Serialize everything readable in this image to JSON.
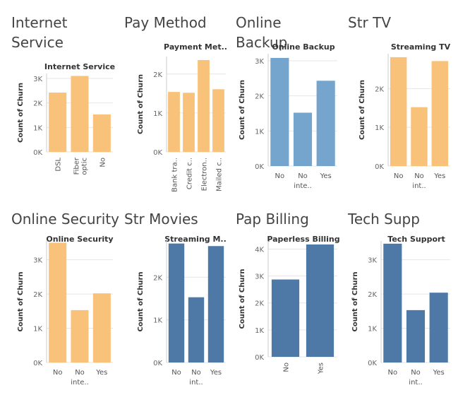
{
  "colors": {
    "orange": "#f8c27a",
    "blue_light": "#75a4cc",
    "blue_dark": "#4e79a7",
    "grid": "#e6e6e6",
    "axis": "#cccccc"
  },
  "chart_data": [
    {
      "panel": "Internet\nService",
      "type": "bar",
      "title": "Internet Service",
      "ylabel": "Count of Churn",
      "categories": [
        "DSL",
        "Fiber optic",
        "No"
      ],
      "tick_text": [
        [
          "DSL"
        ],
        [
          "Fiber",
          "optic"
        ],
        [
          "No"
        ]
      ],
      "values": [
        2420,
        3100,
        1530
      ],
      "ylim": [
        0,
        3200
      ],
      "yticks": [
        0,
        1000,
        2000,
        3000
      ],
      "ytick_labels": [
        "0K",
        "1K",
        "2K",
        "3K"
      ],
      "color": "orange",
      "xrotate": true
    },
    {
      "panel": "Pay Method",
      "type": "bar",
      "title": "Payment Met..",
      "ylabel": "Count of Churn",
      "categories": [
        "Bank tra..",
        "Credit c..",
        "Electron..",
        "Mailed c.."
      ],
      "tick_text": [
        [
          "Bank tra.."
        ],
        [
          "Credit c.."
        ],
        [
          "Electron.."
        ],
        [
          "Mailed c.."
        ]
      ],
      "values": [
        1540,
        1520,
        2360,
        1610
      ],
      "ylim": [
        0,
        2450
      ],
      "yticks": [
        0,
        1000,
        2000
      ],
      "ytick_labels": [
        "0K",
        "1K",
        "2K"
      ],
      "color": "orange",
      "xrotate": true
    },
    {
      "panel": "Online Backup",
      "type": "bar",
      "title": "Online Backup",
      "ylabel": "Count of Churn",
      "categories": [
        "No",
        "No inte..",
        "Yes"
      ],
      "tick_text": [
        [
          "No"
        ],
        [
          "No",
          "inte.."
        ],
        [
          "Yes"
        ]
      ],
      "values": [
        3080,
        1520,
        2430
      ],
      "ylim": [
        0,
        3200
      ],
      "yticks": [
        0,
        1000,
        2000,
        3000
      ],
      "ytick_labels": [
        "0K",
        "1K",
        "2K",
        "3K"
      ],
      "color": "blue_light",
      "xrotate": false
    },
    {
      "panel": "Str TV",
      "type": "bar",
      "title": "Streaming TV",
      "ylabel": "Count of Churn",
      "categories": [
        "No",
        "No int..",
        "Yes"
      ],
      "tick_text": [
        [
          "No"
        ],
        [
          "No",
          "int.."
        ],
        [
          "Yes"
        ]
      ],
      "values": [
        2810,
        1520,
        2710
      ],
      "ylim": [
        0,
        2900
      ],
      "yticks": [
        0,
        1000,
        2000
      ],
      "ytick_labels": [
        "0K",
        "1K",
        "2K"
      ],
      "color": "orange",
      "xrotate": false
    },
    {
      "panel": "Online Security",
      "type": "bar",
      "title": "Online Security",
      "ylabel": "Count of Churn",
      "categories": [
        "No",
        "No inte..",
        "Yes"
      ],
      "tick_text": [
        [
          "No"
        ],
        [
          "No",
          "inte.."
        ],
        [
          "Yes"
        ]
      ],
      "values": [
        3500,
        1530,
        2020
      ],
      "ylim": [
        0,
        3550
      ],
      "yticks": [
        0,
        1000,
        2000,
        3000
      ],
      "ytick_labels": [
        "0K",
        "1K",
        "2K",
        "3K"
      ],
      "color": "orange",
      "xrotate": false
    },
    {
      "panel": "Str Movies",
      "type": "bar",
      "title": "Streaming M..",
      "ylabel": "Count of Churn",
      "categories": [
        "No",
        "No int..",
        "Yes"
      ],
      "tick_text": [
        [
          "No"
        ],
        [
          "No",
          "int.."
        ],
        [
          "Yes"
        ]
      ],
      "values": [
        2790,
        1530,
        2730
      ],
      "ylim": [
        0,
        2850
      ],
      "yticks": [
        0,
        1000,
        2000
      ],
      "ytick_labels": [
        "0K",
        "1K",
        "2K"
      ],
      "color": "blue_dark",
      "xrotate": false
    },
    {
      "panel": "Pap Billing",
      "type": "bar",
      "title": "Paperless Billing",
      "ylabel": "Count of Churn",
      "categories": [
        "No",
        "Yes"
      ],
      "tick_text": [
        [
          "No"
        ],
        [
          "Yes"
        ]
      ],
      "values": [
        2870,
        4170
      ],
      "ylim": [
        0,
        4300
      ],
      "yticks": [
        0,
        1000,
        2000,
        3000,
        4000
      ],
      "ytick_labels": [
        "0K",
        "1K",
        "2K",
        "3K",
        "4K"
      ],
      "color": "blue_dark",
      "xrotate": true
    },
    {
      "panel": "Tech Supp",
      "type": "bar",
      "title": "Tech Support",
      "ylabel": "Count of Churn",
      "categories": [
        "No",
        "No int..",
        "Yes"
      ],
      "tick_text": [
        [
          "No"
        ],
        [
          "No",
          "int.."
        ],
        [
          "Yes"
        ]
      ],
      "values": [
        3470,
        1530,
        2040
      ],
      "ylim": [
        0,
        3550
      ],
      "yticks": [
        0,
        1000,
        2000,
        3000
      ],
      "ytick_labels": [
        "0K",
        "1K",
        "2K",
        "3K"
      ],
      "color": "blue_dark",
      "xrotate": false
    }
  ]
}
